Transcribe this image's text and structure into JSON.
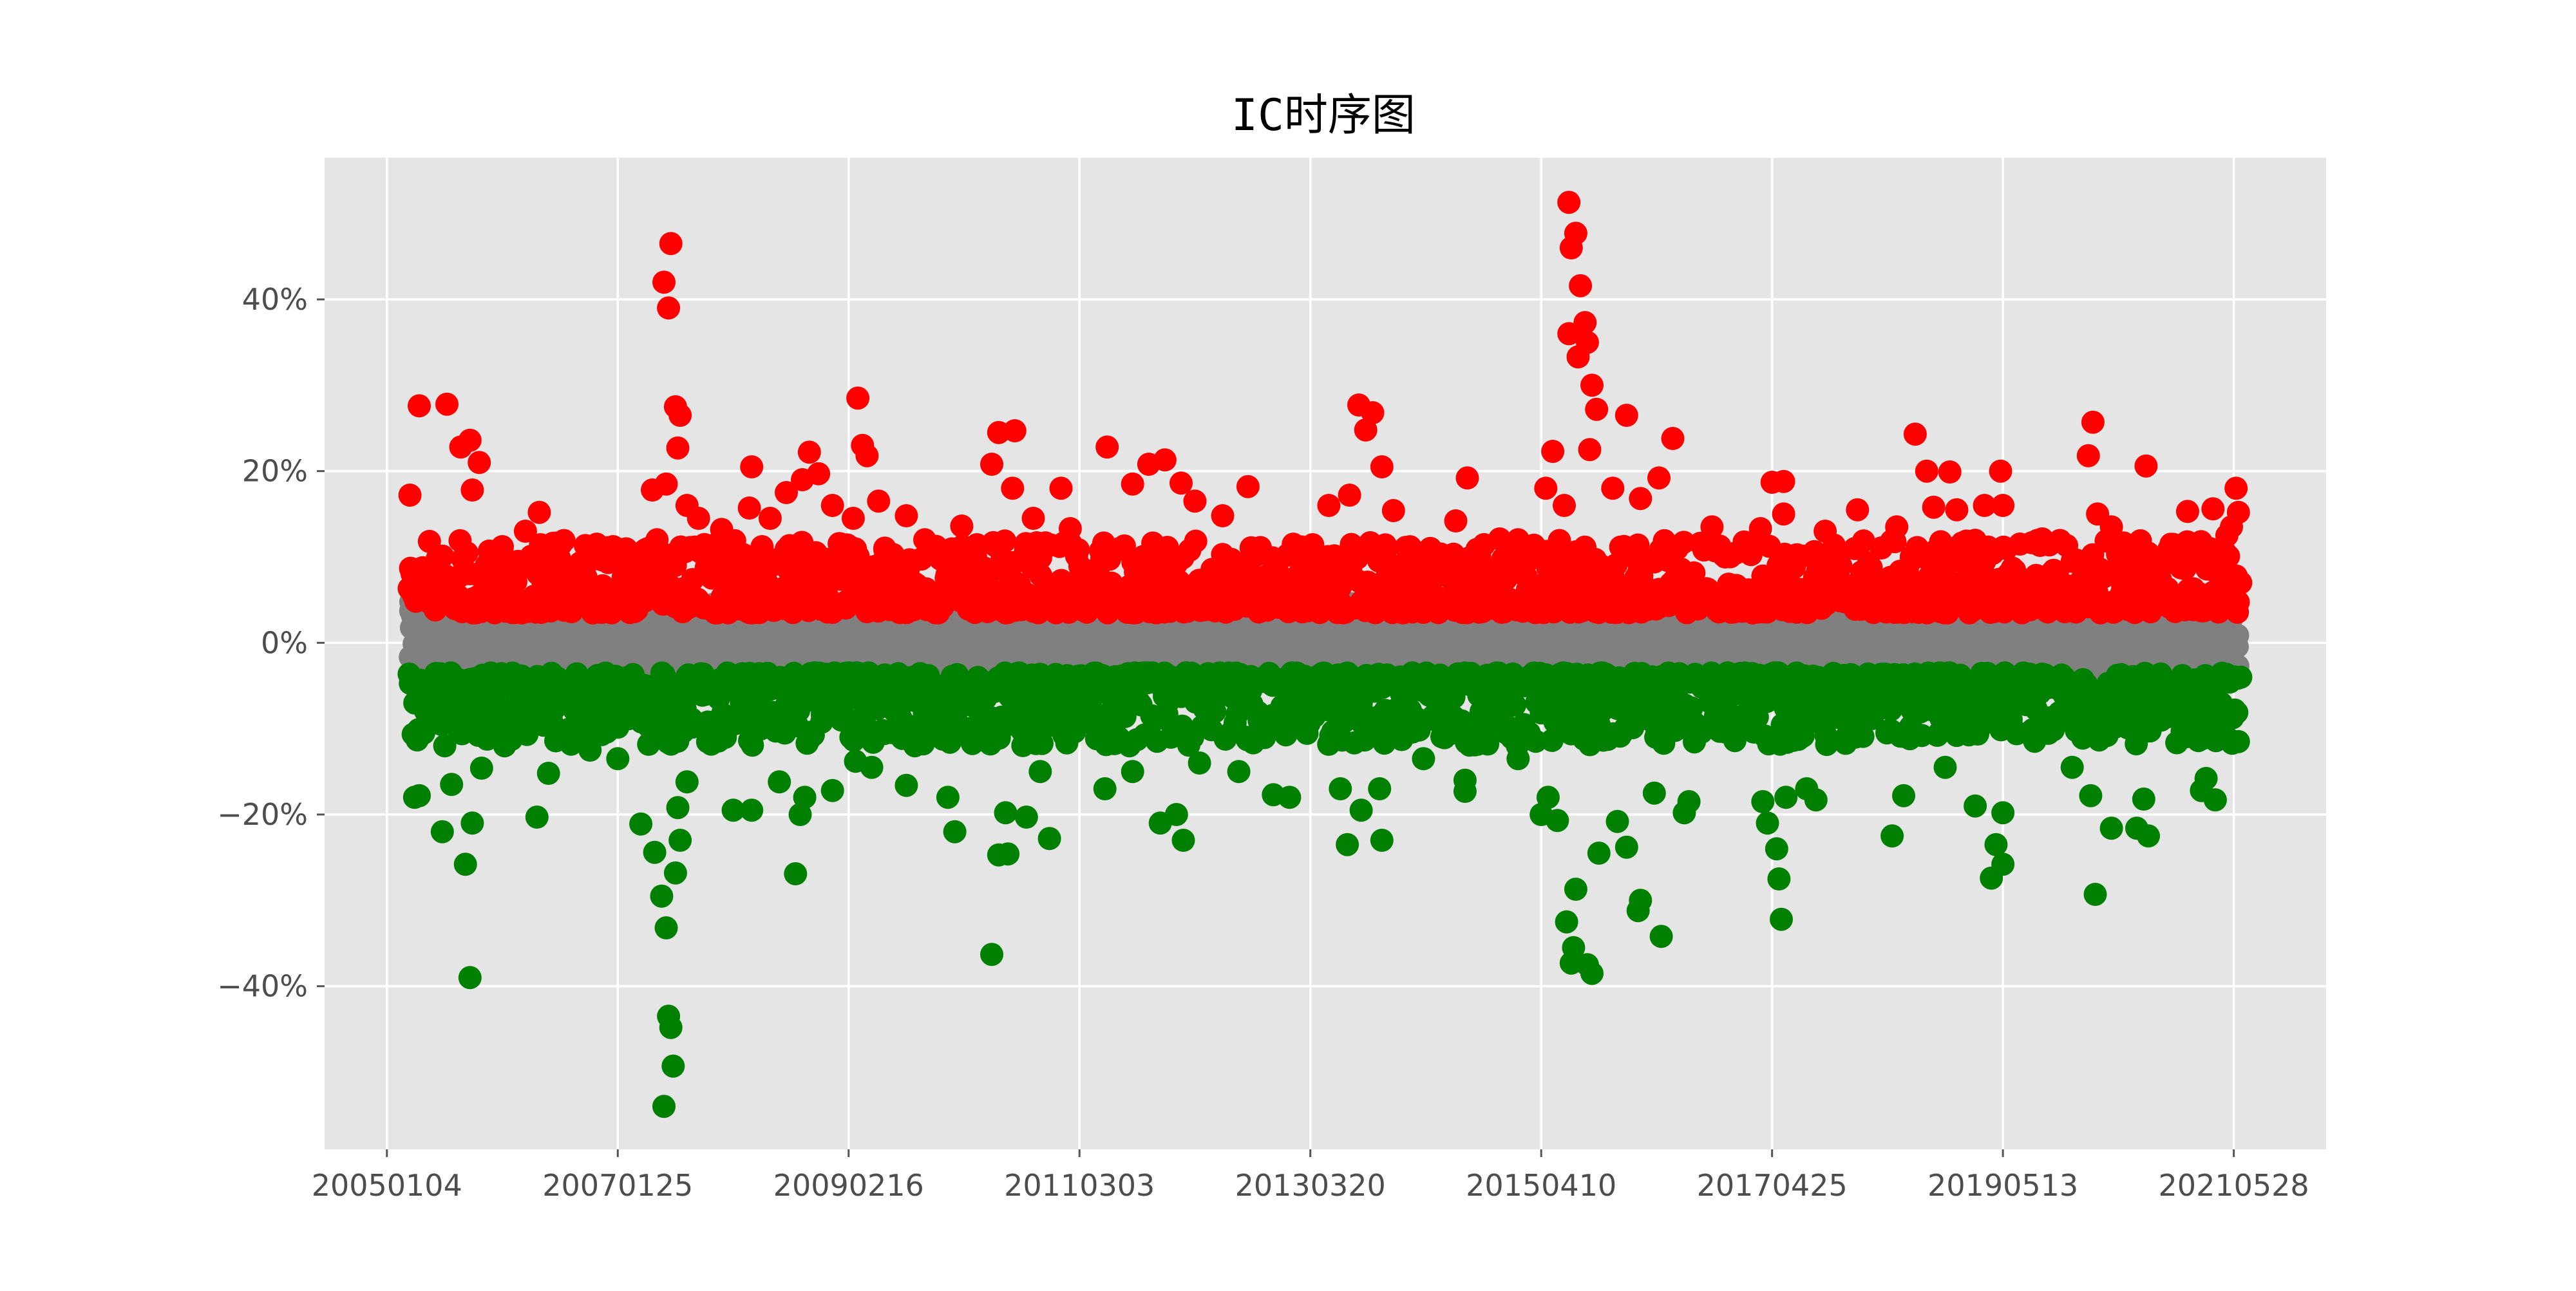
{
  "chart_data": {
    "type": "scatter",
    "title": "IC时序图",
    "xlabel": "",
    "ylabel": "",
    "x_tick_labels": [
      "20050104",
      "20070125",
      "20090216",
      "20110303",
      "20130320",
      "20150410",
      "20170425",
      "20190513",
      "20210528"
    ],
    "y_ticks": [
      -40,
      -20,
      0,
      20,
      40
    ],
    "y_tick_labels": [
      "−40%",
      "−20%",
      "0%",
      "20%",
      "40%"
    ],
    "ylim": [
      -59,
      56.5
    ],
    "xlim": [
      -0.27,
      8.4
    ],
    "grid": true,
    "legend": "none",
    "colors": {
      "positive": "#ff0000",
      "neutral": "#808080",
      "negative": "#008000",
      "plot_background": "#e5e5e5",
      "grid": "#ffffff"
    },
    "series": [
      {
        "color_key": "positive",
        "note_values_percent": true,
        "points": [
          [
            0.14,
            27.6
          ],
          [
            0.26,
            27.8
          ],
          [
            0.36,
            23.6
          ],
          [
            0.32,
            22.8
          ],
          [
            0.4,
            21.0
          ],
          [
            0.1,
            17.2
          ],
          [
            0.37,
            17.8
          ],
          [
            0.66,
            15.2
          ],
          [
            0.6,
            13.0
          ],
          [
            0.5,
            11.2
          ],
          [
            0.72,
            11.6
          ],
          [
            0.86,
            9.0
          ],
          [
            0.98,
            11.2
          ],
          [
            1.1,
            9.5
          ],
          [
            1.15,
            17.8
          ],
          [
            1.17,
            12.0
          ],
          [
            1.2,
            42.0
          ],
          [
            1.23,
            46.5
          ],
          [
            1.22,
            39.0
          ],
          [
            1.25,
            27.5
          ],
          [
            1.27,
            26.5
          ],
          [
            1.26,
            22.7
          ],
          [
            1.21,
            18.5
          ],
          [
            1.3,
            16.0
          ],
          [
            1.35,
            14.5
          ],
          [
            1.45,
            13.2
          ],
          [
            1.57,
            15.7
          ],
          [
            1.58,
            20.5
          ],
          [
            1.66,
            14.5
          ],
          [
            1.73,
            17.5
          ],
          [
            1.8,
            19.0
          ],
          [
            1.83,
            22.2
          ],
          [
            1.87,
            19.7
          ],
          [
            1.93,
            16.0
          ],
          [
            2.02,
            14.5
          ],
          [
            2.04,
            28.5
          ],
          [
            2.06,
            23.0
          ],
          [
            2.08,
            21.8
          ],
          [
            2.13,
            16.5
          ],
          [
            2.25,
            14.8
          ],
          [
            2.33,
            12.0
          ],
          [
            2.49,
            13.6
          ],
          [
            2.62,
            20.8
          ],
          [
            2.65,
            24.5
          ],
          [
            2.72,
            24.7
          ],
          [
            2.71,
            18.0
          ],
          [
            2.8,
            14.5
          ],
          [
            2.92,
            18.0
          ],
          [
            2.96,
            13.3
          ],
          [
            3.12,
            22.8
          ],
          [
            3.23,
            18.5
          ],
          [
            3.3,
            20.8
          ],
          [
            3.37,
            21.3
          ],
          [
            3.44,
            18.6
          ],
          [
            3.5,
            16.5
          ],
          [
            3.62,
            14.8
          ],
          [
            3.73,
            18.2
          ],
          [
            3.9,
            10.2
          ],
          [
            4.08,
            16.0
          ],
          [
            4.17,
            17.2
          ],
          [
            4.21,
            27.7
          ],
          [
            4.24,
            24.8
          ],
          [
            4.27,
            26.8
          ],
          [
            4.31,
            20.5
          ],
          [
            4.36,
            15.4
          ],
          [
            4.52,
            11.0
          ],
          [
            4.63,
            14.2
          ],
          [
            4.68,
            19.2
          ],
          [
            4.82,
            12.1
          ],
          [
            4.9,
            12.0
          ],
          [
            5.02,
            18.0
          ],
          [
            5.05,
            22.3
          ],
          [
            5.12,
            51.3
          ],
          [
            5.15,
            47.7
          ],
          [
            5.17,
            41.6
          ],
          [
            5.13,
            46.0
          ],
          [
            5.12,
            36.0
          ],
          [
            5.19,
            37.3
          ],
          [
            5.2,
            35.0
          ],
          [
            5.16,
            33.3
          ],
          [
            5.22,
            30.0
          ],
          [
            5.24,
            27.2
          ],
          [
            5.21,
            22.5
          ],
          [
            5.1,
            16.0
          ],
          [
            5.31,
            18.0
          ],
          [
            5.37,
            26.5
          ],
          [
            5.43,
            16.8
          ],
          [
            5.51,
            19.2
          ],
          [
            5.57,
            23.8
          ],
          [
            5.74,
            13.5
          ],
          [
            5.95,
            13.3
          ],
          [
            6.05,
            15.0
          ],
          [
            6.0,
            18.7
          ],
          [
            6.05,
            18.8
          ],
          [
            6.23,
            13.0
          ],
          [
            6.37,
            15.5
          ],
          [
            6.54,
            13.5
          ],
          [
            6.62,
            24.3
          ],
          [
            6.67,
            20.0
          ],
          [
            6.7,
            15.8
          ],
          [
            6.77,
            19.9
          ],
          [
            6.8,
            15.5
          ],
          [
            6.92,
            16.0
          ],
          [
            6.99,
            20.0
          ],
          [
            7.0,
            16.0
          ],
          [
            7.17,
            12.1
          ],
          [
            7.3,
            9.5
          ],
          [
            7.37,
            21.8
          ],
          [
            7.39,
            25.7
          ],
          [
            7.41,
            15.0
          ],
          [
            7.47,
            13.5
          ],
          [
            7.55,
            10.3
          ],
          [
            7.62,
            20.6
          ],
          [
            7.8,
            15.3
          ],
          [
            7.91,
            15.6
          ],
          [
            7.99,
            13.5
          ],
          [
            8.01,
            18.0
          ],
          [
            8.02,
            15.2
          ],
          [
            7.97,
            12.5
          ],
          [
            8.03,
            7.0
          ]
        ],
        "band": {
          "count": 1350,
          "min": 3.5,
          "max": 12.0,
          "decay": 0.3
        }
      },
      {
        "color_key": "neutral",
        "band": {
          "count": 3600,
          "min": -4.5,
          "max": 4.8,
          "decay": 0
        }
      },
      {
        "color_key": "negative",
        "points": [
          [
            0.12,
            -18.0
          ],
          [
            0.14,
            -17.8
          ],
          [
            0.36,
            -39.0
          ],
          [
            0.34,
            -25.8
          ],
          [
            0.24,
            -22.0
          ],
          [
            0.37,
            -21.0
          ],
          [
            0.28,
            -16.5
          ],
          [
            0.41,
            -14.6
          ],
          [
            0.51,
            -12.0
          ],
          [
            0.65,
            -20.3
          ],
          [
            0.7,
            -15.2
          ],
          [
            0.88,
            -12.5
          ],
          [
            1.0,
            -13.5
          ],
          [
            1.1,
            -21.1
          ],
          [
            1.16,
            -24.4
          ],
          [
            1.2,
            -54.0
          ],
          [
            1.22,
            -43.5
          ],
          [
            1.23,
            -44.8
          ],
          [
            1.24,
            -49.3
          ],
          [
            1.21,
            -33.2
          ],
          [
            1.19,
            -29.5
          ],
          [
            1.25,
            -26.8
          ],
          [
            1.27,
            -23.0
          ],
          [
            1.26,
            -19.2
          ],
          [
            1.3,
            -16.2
          ],
          [
            1.5,
            -19.5
          ],
          [
            1.58,
            -19.5
          ],
          [
            1.7,
            -16.2
          ],
          [
            1.79,
            -20.0
          ],
          [
            1.81,
            -18.0
          ],
          [
            1.77,
            -26.9
          ],
          [
            1.93,
            -17.2
          ],
          [
            2.03,
            -13.8
          ],
          [
            2.1,
            -14.5
          ],
          [
            2.25,
            -16.6
          ],
          [
            2.43,
            -18.0
          ],
          [
            2.46,
            -22.0
          ],
          [
            2.62,
            -36.3
          ],
          [
            2.65,
            -24.7
          ],
          [
            2.69,
            -24.6
          ],
          [
            2.68,
            -19.8
          ],
          [
            2.77,
            -20.3
          ],
          [
            2.83,
            -15.0
          ],
          [
            2.87,
            -22.8
          ],
          [
            3.11,
            -17.0
          ],
          [
            3.23,
            -15.0
          ],
          [
            3.35,
            -21.0
          ],
          [
            3.42,
            -20.0
          ],
          [
            3.45,
            -23.0
          ],
          [
            3.52,
            -14.0
          ],
          [
            3.69,
            -15.0
          ],
          [
            3.84,
            -17.7
          ],
          [
            3.91,
            -18.0
          ],
          [
            4.13,
            -17.0
          ],
          [
            4.16,
            -23.5
          ],
          [
            4.22,
            -19.5
          ],
          [
            4.31,
            -23.0
          ],
          [
            4.3,
            -17.0
          ],
          [
            4.49,
            -13.5
          ],
          [
            4.67,
            -16.0
          ],
          [
            4.67,
            -17.3
          ],
          [
            4.9,
            -13.5
          ],
          [
            5.0,
            -20.0
          ],
          [
            5.03,
            -18.0
          ],
          [
            5.07,
            -20.7
          ],
          [
            5.11,
            -32.5
          ],
          [
            5.13,
            -37.3
          ],
          [
            5.14,
            -35.5
          ],
          [
            5.15,
            -28.7
          ],
          [
            5.2,
            -37.5
          ],
          [
            5.22,
            -38.5
          ],
          [
            5.25,
            -24.5
          ],
          [
            5.33,
            -20.8
          ],
          [
            5.37,
            -23.8
          ],
          [
            5.42,
            -31.2
          ],
          [
            5.43,
            -30.0
          ],
          [
            5.49,
            -17.5
          ],
          [
            5.52,
            -34.2
          ],
          [
            5.62,
            -19.8
          ],
          [
            5.64,
            -18.5
          ],
          [
            5.96,
            -18.5
          ],
          [
            5.98,
            -21.0
          ],
          [
            6.03,
            -27.5
          ],
          [
            6.04,
            -32.2
          ],
          [
            6.02,
            -24.0
          ],
          [
            6.06,
            -18.0
          ],
          [
            6.15,
            -17.0
          ],
          [
            6.19,
            -18.3
          ],
          [
            6.52,
            -22.5
          ],
          [
            6.57,
            -17.8
          ],
          [
            6.75,
            -14.5
          ],
          [
            6.88,
            -19.0
          ],
          [
            6.95,
            -27.4
          ],
          [
            6.97,
            -23.5
          ],
          [
            7.0,
            -19.8
          ],
          [
            7.0,
            -25.8
          ],
          [
            7.3,
            -14.5
          ],
          [
            7.38,
            -17.8
          ],
          [
            7.4,
            -29.3
          ],
          [
            7.47,
            -21.6
          ],
          [
            7.58,
            -21.6
          ],
          [
            7.63,
            -22.5
          ],
          [
            7.61,
            -18.2
          ],
          [
            7.86,
            -17.2
          ],
          [
            7.92,
            -18.3
          ],
          [
            7.88,
            -15.8
          ],
          [
            8.02,
            -11.5
          ],
          [
            8.03,
            -4.0
          ]
        ],
        "band": {
          "count": 1350,
          "min": -12.0,
          "max": -3.5,
          "decay": 0.3
        }
      }
    ]
  }
}
